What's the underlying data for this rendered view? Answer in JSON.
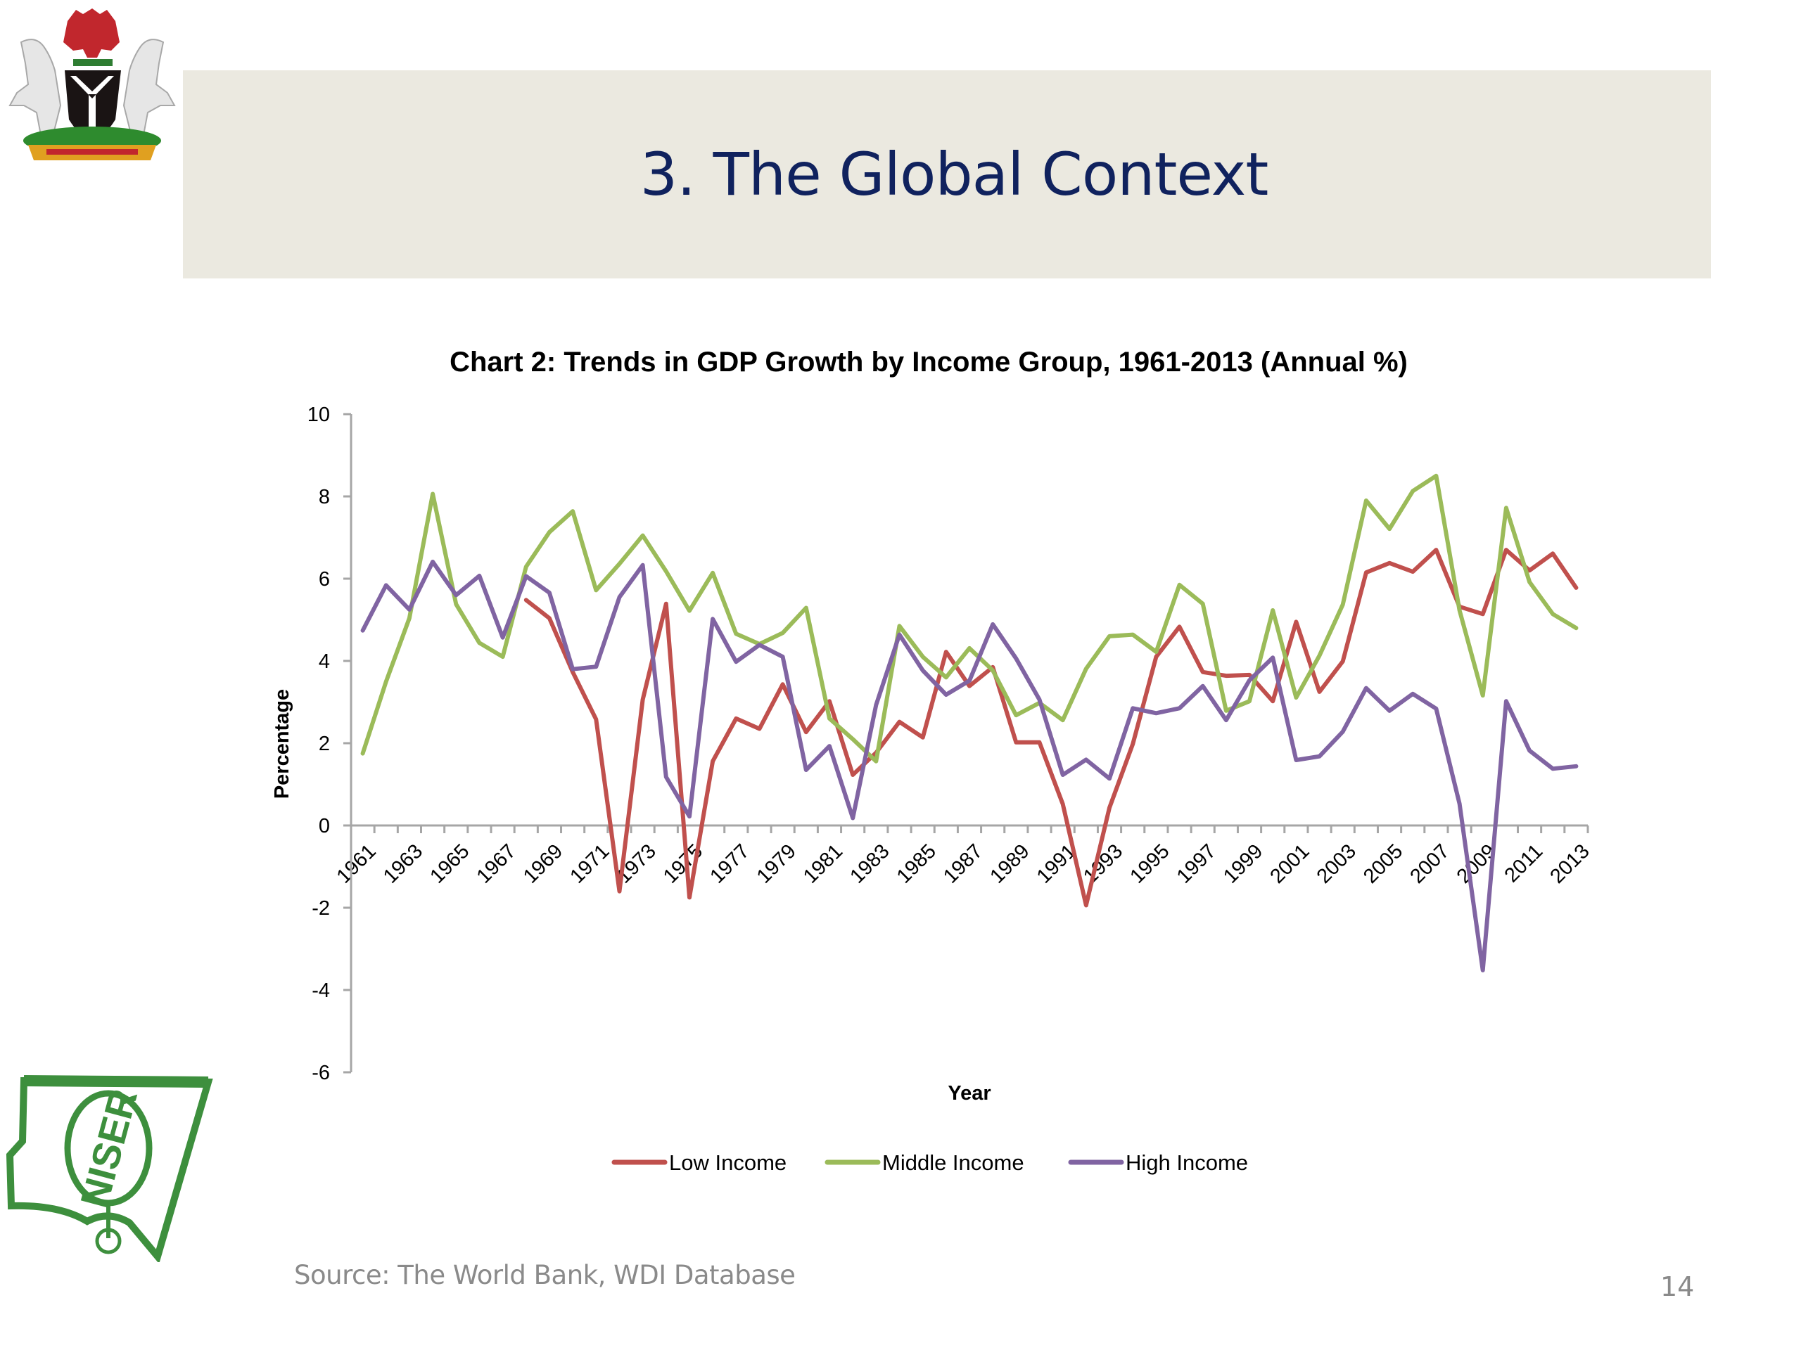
{
  "slide": {
    "title": "3. The Global Context",
    "source": "Source: The World Bank, WDI Database",
    "page_number": "14",
    "header_bg": "#ebe9e0",
    "title_color": "#10225e"
  },
  "logos": {
    "top_left": "nigeria-coat-of-arms",
    "bottom_left": "NISER",
    "bottom_left_text": "NISER"
  },
  "chart_data": {
    "type": "line",
    "title": "Chart 2: Trends in GDP Growth by Income Group, 1961-2013 (Annual %)",
    "xlabel": "Year",
    "ylabel": "Percentage",
    "ylim": [
      -6,
      10
    ],
    "yticks": [
      -6,
      -4,
      -2,
      0,
      2,
      4,
      6,
      8,
      10
    ],
    "grid": false,
    "legend_position": "bottom",
    "x": [
      1961,
      1962,
      1963,
      1964,
      1965,
      1966,
      1967,
      1968,
      1969,
      1970,
      1971,
      1972,
      1973,
      1974,
      1975,
      1976,
      1977,
      1978,
      1979,
      1980,
      1981,
      1982,
      1983,
      1984,
      1985,
      1986,
      1987,
      1988,
      1989,
      1990,
      1991,
      1992,
      1993,
      1994,
      1995,
      1996,
      1997,
      1998,
      1999,
      2000,
      2001,
      2002,
      2003,
      2004,
      2005,
      2006,
      2007,
      2008,
      2009,
      2010,
      2011,
      2012,
      2013
    ],
    "xtick_labels": [
      "1961",
      "1963",
      "1965",
      "1967",
      "1969",
      "1971",
      "1973",
      "1975",
      "1977",
      "1979",
      "1981",
      "1983",
      "1985",
      "1987",
      "1989",
      "1991",
      "1993",
      "1995",
      "1997",
      "1999",
      "2001",
      "2003",
      "2005",
      "2007",
      "2009",
      "2011",
      "2013"
    ],
    "series": [
      {
        "name": "Low Income",
        "color": "#c0504d",
        "values": [
          null,
          null,
          null,
          null,
          null,
          null,
          null,
          5.48,
          5.04,
          3.73,
          2.58,
          -1.6,
          3.06,
          5.39,
          -1.75,
          1.56,
          2.6,
          2.35,
          3.43,
          2.27,
          3.02,
          1.23,
          1.77,
          2.52,
          2.14,
          4.22,
          3.39,
          3.85,
          2.02,
          2.02,
          0.52,
          -1.94,
          0.43,
          1.98,
          4.1,
          4.83,
          3.73,
          3.64,
          3.66,
          3.02,
          4.95,
          3.25,
          3.99,
          6.15,
          6.38,
          6.17,
          6.7,
          5.32,
          5.14,
          6.7,
          6.2,
          6.61,
          5.78
        ]
      },
      {
        "name": "Middle Income",
        "color": "#9bbb59",
        "values": [
          1.75,
          3.5,
          5.04,
          8.06,
          5.38,
          4.44,
          4.1,
          6.29,
          7.13,
          7.64,
          5.72,
          6.36,
          7.05,
          6.18,
          5.22,
          6.14,
          4.66,
          4.41,
          4.68,
          5.29,
          2.6,
          2.1,
          1.56,
          4.85,
          4.1,
          3.6,
          4.31,
          3.77,
          2.68,
          2.98,
          2.56,
          3.81,
          4.6,
          4.64,
          4.22,
          5.85,
          5.39,
          2.79,
          3.02,
          5.23,
          3.11,
          4.13,
          5.37,
          7.9,
          7.21,
          8.13,
          8.5,
          5.23,
          3.16,
          7.72,
          5.92,
          5.14,
          4.8
        ]
      },
      {
        "name": "High Income",
        "color": "#8064a2",
        "values": [
          4.74,
          5.84,
          5.25,
          6.41,
          5.6,
          6.07,
          4.57,
          6.06,
          5.66,
          3.8,
          3.86,
          5.55,
          6.33,
          1.18,
          0.22,
          5.02,
          3.98,
          4.39,
          4.1,
          1.35,
          1.93,
          0.18,
          2.93,
          4.64,
          3.77,
          3.18,
          3.52,
          4.89,
          4.06,
          3.06,
          1.23,
          1.6,
          1.14,
          2.85,
          2.73,
          2.85,
          3.39,
          2.56,
          3.53,
          4.08,
          1.59,
          1.68,
          2.28,
          3.34,
          2.79,
          3.2,
          2.84,
          0.53,
          -3.52,
          3.02,
          1.82,
          1.38,
          1.44
        ]
      }
    ]
  }
}
